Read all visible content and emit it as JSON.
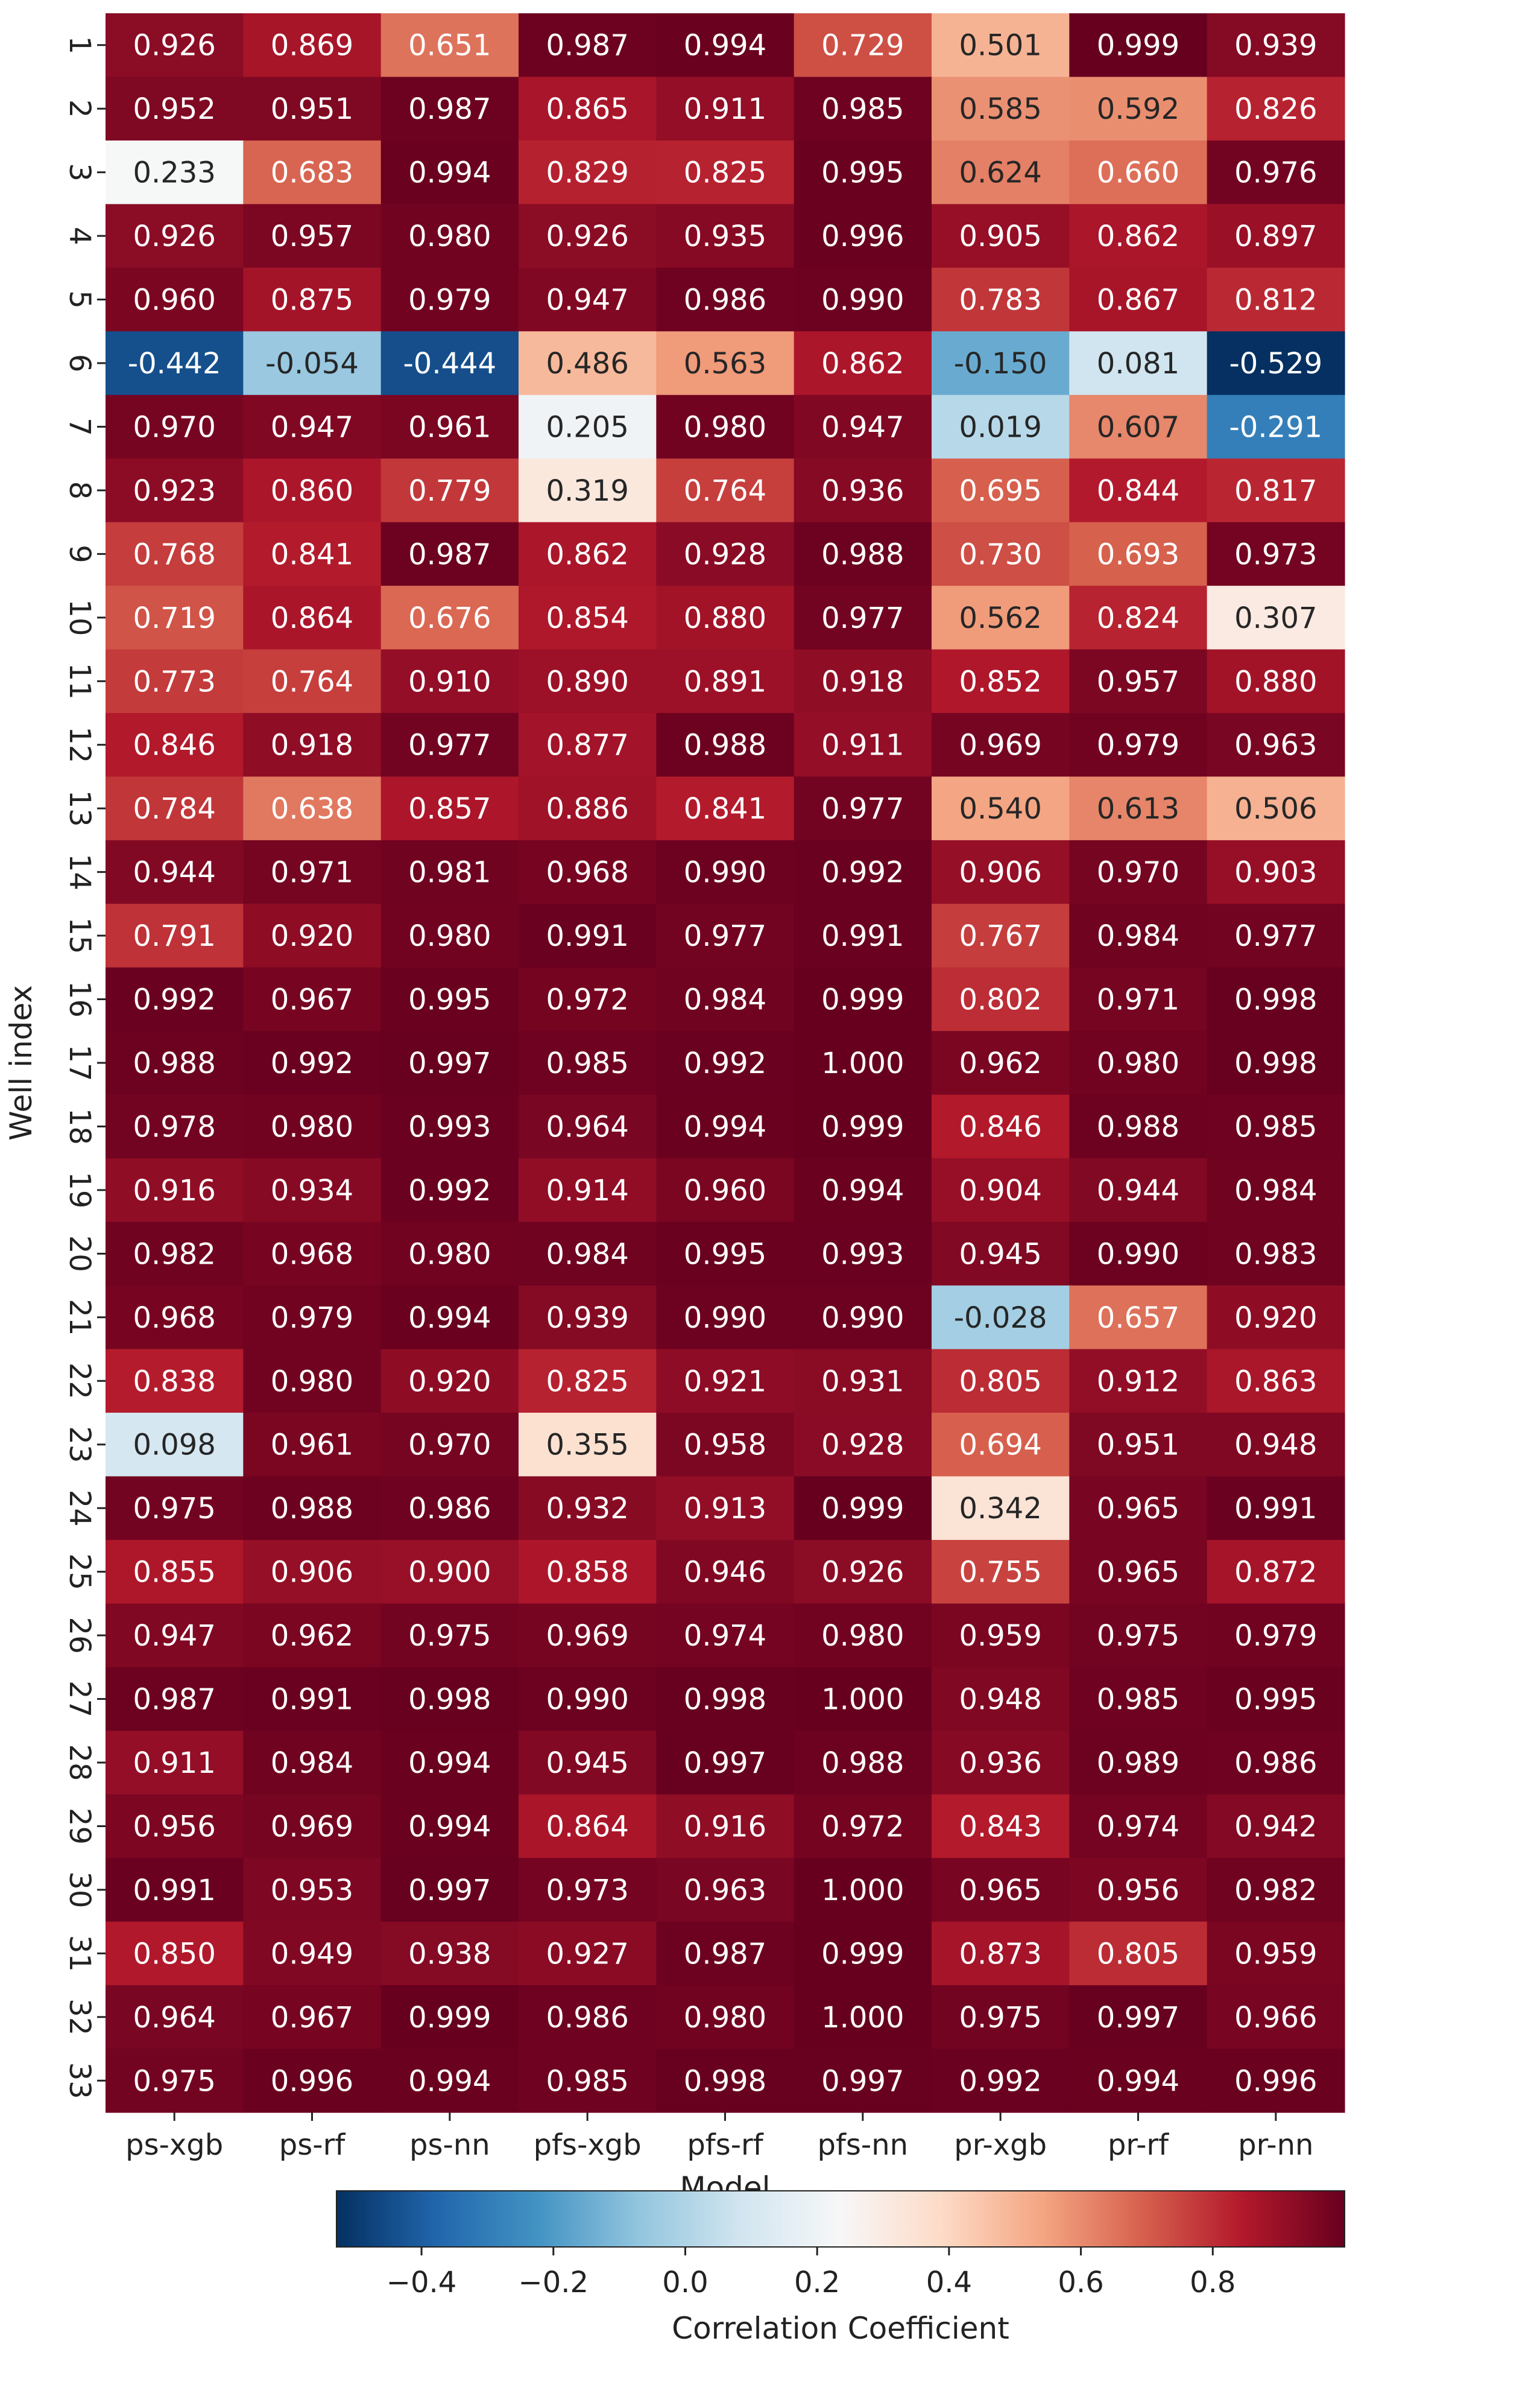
{
  "chart_data": {
    "type": "heatmap",
    "xlabel": "Model",
    "ylabel": "Well index",
    "categories": [
      "ps-xgb",
      "ps-rf",
      "ps-nn",
      "pfs-xgb",
      "pfs-rf",
      "pfs-nn",
      "pr-xgb",
      "pr-rf",
      "pr-nn"
    ],
    "rows": [
      "1",
      "2",
      "3",
      "4",
      "5",
      "6",
      "7",
      "8",
      "9",
      "10",
      "11",
      "12",
      "13",
      "14",
      "15",
      "16",
      "17",
      "18",
      "19",
      "20",
      "21",
      "22",
      "23",
      "24",
      "25",
      "26",
      "27",
      "28",
      "29",
      "30",
      "31",
      "32",
      "33"
    ],
    "values": [
      [
        0.926,
        0.869,
        0.651,
        0.987,
        0.994,
        0.729,
        0.501,
        0.999,
        0.939
      ],
      [
        0.952,
        0.951,
        0.987,
        0.865,
        0.911,
        0.985,
        0.585,
        0.592,
        0.826
      ],
      [
        0.233,
        0.683,
        0.994,
        0.829,
        0.825,
        0.995,
        0.624,
        0.66,
        0.976
      ],
      [
        0.926,
        0.957,
        0.98,
        0.926,
        0.935,
        0.996,
        0.905,
        0.862,
        0.897
      ],
      [
        0.96,
        0.875,
        0.979,
        0.947,
        0.986,
        0.99,
        0.783,
        0.867,
        0.812
      ],
      [
        -0.442,
        -0.054,
        -0.444,
        0.486,
        0.563,
        0.862,
        -0.15,
        0.081,
        -0.529
      ],
      [
        0.97,
        0.947,
        0.961,
        0.205,
        0.98,
        0.947,
        0.019,
        0.607,
        -0.291
      ],
      [
        0.923,
        0.86,
        0.779,
        0.319,
        0.764,
        0.936,
        0.695,
        0.844,
        0.817
      ],
      [
        0.768,
        0.841,
        0.987,
        0.862,
        0.928,
        0.988,
        0.73,
        0.693,
        0.973
      ],
      [
        0.719,
        0.864,
        0.676,
        0.854,
        0.88,
        0.977,
        0.562,
        0.824,
        0.307
      ],
      [
        0.773,
        0.764,
        0.91,
        0.89,
        0.891,
        0.918,
        0.852,
        0.957,
        0.88
      ],
      [
        0.846,
        0.918,
        0.977,
        0.877,
        0.988,
        0.911,
        0.969,
        0.979,
        0.963
      ],
      [
        0.784,
        0.638,
        0.857,
        0.886,
        0.841,
        0.977,
        0.54,
        0.613,
        0.506
      ],
      [
        0.944,
        0.971,
        0.981,
        0.968,
        0.99,
        0.992,
        0.906,
        0.97,
        0.903
      ],
      [
        0.791,
        0.92,
        0.98,
        0.991,
        0.977,
        0.991,
        0.767,
        0.984,
        0.977
      ],
      [
        0.992,
        0.967,
        0.995,
        0.972,
        0.984,
        0.999,
        0.802,
        0.971,
        0.998
      ],
      [
        0.988,
        0.992,
        0.997,
        0.985,
        0.992,
        1.0,
        0.962,
        0.98,
        0.998
      ],
      [
        0.978,
        0.98,
        0.993,
        0.964,
        0.994,
        0.999,
        0.846,
        0.988,
        0.985
      ],
      [
        0.916,
        0.934,
        0.992,
        0.914,
        0.96,
        0.994,
        0.904,
        0.944,
        0.984
      ],
      [
        0.982,
        0.968,
        0.98,
        0.984,
        0.995,
        0.993,
        0.945,
        0.99,
        0.983
      ],
      [
        0.968,
        0.979,
        0.994,
        0.939,
        0.99,
        0.99,
        -0.028,
        0.657,
        0.92
      ],
      [
        0.838,
        0.98,
        0.92,
        0.825,
        0.921,
        0.931,
        0.805,
        0.912,
        0.863
      ],
      [
        0.098,
        0.961,
        0.97,
        0.355,
        0.958,
        0.928,
        0.694,
        0.951,
        0.948
      ],
      [
        0.975,
        0.988,
        0.986,
        0.932,
        0.913,
        0.999,
        0.342,
        0.965,
        0.991
      ],
      [
        0.855,
        0.906,
        0.9,
        0.858,
        0.946,
        0.926,
        0.755,
        0.965,
        0.872
      ],
      [
        0.947,
        0.962,
        0.975,
        0.969,
        0.974,
        0.98,
        0.959,
        0.975,
        0.979
      ],
      [
        0.987,
        0.991,
        0.998,
        0.99,
        0.998,
        1.0,
        0.948,
        0.985,
        0.995
      ],
      [
        0.911,
        0.984,
        0.994,
        0.945,
        0.997,
        0.988,
        0.936,
        0.989,
        0.986
      ],
      [
        0.956,
        0.969,
        0.994,
        0.864,
        0.916,
        0.972,
        0.843,
        0.974,
        0.942
      ],
      [
        0.991,
        0.953,
        0.997,
        0.973,
        0.963,
        1.0,
        0.965,
        0.956,
        0.982
      ],
      [
        0.85,
        0.949,
        0.938,
        0.927,
        0.987,
        0.999,
        0.873,
        0.805,
        0.959
      ],
      [
        0.964,
        0.967,
        0.999,
        0.986,
        0.98,
        1.0,
        0.975,
        0.997,
        0.966
      ],
      [
        0.975,
        0.996,
        0.994,
        0.985,
        0.998,
        0.997,
        0.992,
        0.994,
        0.996
      ]
    ],
    "colorbar": {
      "label": "Correlation Coefficient",
      "range": [
        -0.529,
        1.0
      ],
      "ticks": [
        -0.4,
        -0.2,
        0.0,
        0.2,
        0.4,
        0.6,
        0.8
      ],
      "tick_labels": [
        "−0.4",
        "−0.2",
        "0.0",
        "0.2",
        "0.4",
        "0.6",
        "0.8"
      ],
      "colormap": "RdBu_r"
    }
  }
}
